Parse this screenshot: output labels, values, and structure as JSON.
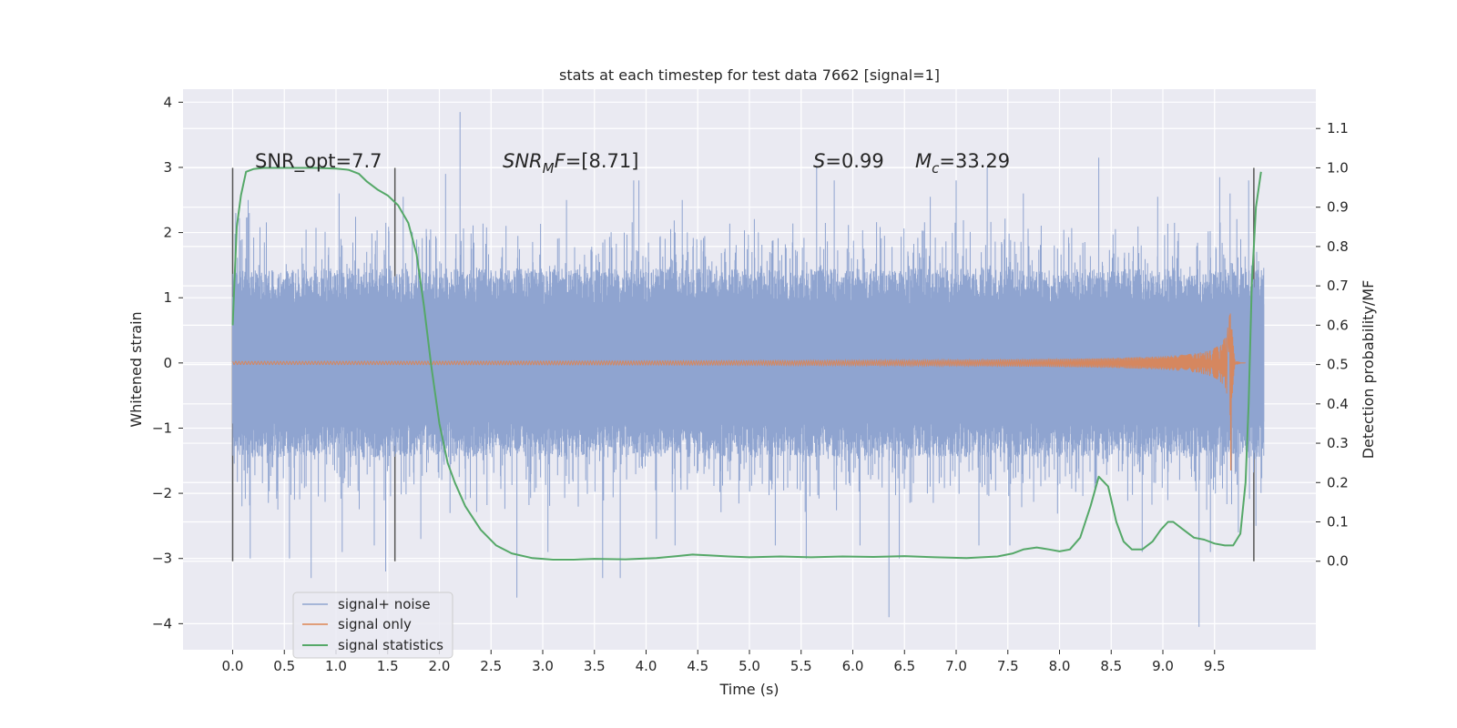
{
  "chart_data": {
    "type": "line",
    "title": "stats at each timestep for test data 7662 [signal=1]",
    "xlabel": "Time (s)",
    "ylabel": "Whitened strain",
    "y2label": "Detection probability/MF",
    "xlim": [
      -0.48,
      10.48
    ],
    "ylim": [
      -4.4,
      4.2
    ],
    "y2lim": [
      -0.225,
      1.2
    ],
    "grid": true,
    "legend_position": "lower-left",
    "xticks": [
      "0.0",
      "0.5",
      "1.0",
      "1.5",
      "2.0",
      "2.5",
      "3.0",
      "3.5",
      "4.0",
      "4.5",
      "5.0",
      "5.5",
      "6.0",
      "6.5",
      "7.0",
      "7.5",
      "8.0",
      "8.5",
      "9.0",
      "9.5"
    ],
    "yticks": [
      "4",
      "3",
      "2",
      "1",
      "0",
      "−1",
      "−2",
      "−3",
      "−4"
    ],
    "y2ticks": [
      "1.1",
      "1.0",
      "0.9",
      "0.8",
      "0.7",
      "0.6",
      "0.5",
      "0.4",
      "0.3",
      "0.2",
      "0.1",
      "0.0"
    ],
    "annotations": {
      "snr_opt": "SNR_opt=7.7",
      "snr_mf": "[8.71]",
      "s_stat": "=0.99",
      "mc": "=33.29"
    },
    "vertical_lines_x": [
      0.0,
      1.57,
      9.88
    ],
    "series": [
      {
        "name": "signal+ noise",
        "color": "#8fa4d0",
        "x_range": [
          0.0,
          9.98
        ],
        "envelope": [
          0.9,
          1.45
        ],
        "spikes": [
          [
            0.03,
            2.3
          ],
          [
            0.09,
            -2.2
          ],
          [
            0.15,
            2.5
          ],
          [
            0.17,
            -3.0
          ],
          [
            0.55,
            -3.0
          ],
          [
            0.76,
            -3.3
          ],
          [
            1.03,
            2.6
          ],
          [
            1.06,
            -2.9
          ],
          [
            1.37,
            -2.8
          ],
          [
            1.48,
            -3.2
          ],
          [
            1.65,
            2.55
          ],
          [
            1.82,
            -2.7
          ],
          [
            2.06,
            2.9
          ],
          [
            2.2,
            3.85
          ],
          [
            2.75,
            -3.6
          ],
          [
            3.05,
            -2.9
          ],
          [
            3.23,
            2.5
          ],
          [
            3.58,
            -3.3
          ],
          [
            3.75,
            -3.3
          ],
          [
            3.88,
            2.8
          ],
          [
            3.93,
            2.8
          ],
          [
            4.1,
            -2.7
          ],
          [
            4.28,
            -2.8
          ],
          [
            4.35,
            2.5
          ],
          [
            5.25,
            -2.8
          ],
          [
            5.55,
            -3.0
          ],
          [
            5.65,
            3.0
          ],
          [
            5.82,
            2.8
          ],
          [
            6.07,
            -2.8
          ],
          [
            6.35,
            -3.9
          ],
          [
            6.45,
            -3.0
          ],
          [
            6.75,
            2.55
          ],
          [
            7.0,
            2.8
          ],
          [
            7.22,
            -2.8
          ],
          [
            7.3,
            3.0
          ],
          [
            7.52,
            -2.8
          ],
          [
            7.65,
            2.6
          ],
          [
            8.38,
            3.15
          ],
          [
            8.8,
            -2.9
          ],
          [
            8.95,
            2.55
          ],
          [
            9.35,
            -4.05
          ],
          [
            9.46,
            -2.9
          ],
          [
            9.55,
            2.85
          ],
          [
            9.65,
            2.6
          ],
          [
            9.73,
            -2.6
          ],
          [
            9.83,
            2.8
          ],
          [
            9.9,
            -2.5
          ]
        ]
      },
      {
        "name": "signal only",
        "color": "#dd8452",
        "x_range": [
          0.0,
          9.8
        ],
        "chirp_peak_time": 9.66,
        "chirp_peak_amplitude": 1.75
      },
      {
        "name": "signal statistics",
        "color": "#55a868",
        "axis": "right",
        "x": [
          0.0,
          0.04,
          0.08,
          0.13,
          0.2,
          0.3,
          0.5,
          0.8,
          1.0,
          1.12,
          1.22,
          1.3,
          1.4,
          1.5,
          1.6,
          1.7,
          1.78,
          1.85,
          1.92,
          2.0,
          2.08,
          2.15,
          2.25,
          2.4,
          2.55,
          2.7,
          2.9,
          3.1,
          3.3,
          3.5,
          3.8,
          4.1,
          4.3,
          4.45,
          4.6,
          4.8,
          5.0,
          5.3,
          5.6,
          5.9,
          6.2,
          6.5,
          6.8,
          7.1,
          7.4,
          7.55,
          7.65,
          7.78,
          7.9,
          8.0,
          8.1,
          8.2,
          8.3,
          8.38,
          8.47,
          8.55,
          8.62,
          8.7,
          8.8,
          8.9,
          8.98,
          9.05,
          9.1,
          9.2,
          9.3,
          9.4,
          9.5,
          9.6,
          9.68,
          9.75,
          9.8,
          9.83,
          9.86,
          9.9,
          9.95
        ],
        "y": [
          0.6,
          0.85,
          0.93,
          0.99,
          0.997,
          1.0,
          1.0,
          1.0,
          0.998,
          0.995,
          0.985,
          0.965,
          0.945,
          0.93,
          0.905,
          0.86,
          0.78,
          0.65,
          0.5,
          0.35,
          0.25,
          0.2,
          0.14,
          0.08,
          0.04,
          0.02,
          0.008,
          0.004,
          0.004,
          0.006,
          0.005,
          0.008,
          0.013,
          0.017,
          0.015,
          0.012,
          0.01,
          0.012,
          0.01,
          0.012,
          0.011,
          0.013,
          0.01,
          0.008,
          0.012,
          0.02,
          0.03,
          0.035,
          0.03,
          0.025,
          0.03,
          0.06,
          0.14,
          0.215,
          0.19,
          0.1,
          0.05,
          0.03,
          0.03,
          0.05,
          0.08,
          0.1,
          0.1,
          0.08,
          0.06,
          0.055,
          0.045,
          0.04,
          0.04,
          0.07,
          0.2,
          0.4,
          0.7,
          0.9,
          0.99
        ]
      }
    ]
  }
}
